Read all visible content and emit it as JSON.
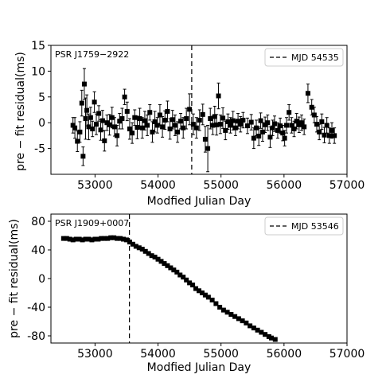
{
  "chart_data": [
    {
      "type": "scatter",
      "annotation": "PSR J1759−2922",
      "legend_label": "MJD 54535",
      "legend_position": "top-right",
      "vline_x": 54535,
      "xlabel": "Modfied Julian Day",
      "ylabel": "pre − fit residual(ms)",
      "xlim": [
        52300,
        57000
      ],
      "ylim": [
        -10,
        15
      ],
      "x_ticks": [
        53000,
        54000,
        55000,
        56000,
        57000
      ],
      "y_ticks": [
        15,
        10,
        5,
        0,
        -5
      ],
      "error_bars": true,
      "points": [
        [
          52650,
          -0.5,
          1.5
        ],
        [
          52680,
          -1.0,
          2.0
        ],
        [
          52720,
          -3.6,
          2.0
        ],
        [
          52760,
          -1.8,
          2.0
        ],
        [
          52790,
          3.8,
          2.5
        ],
        [
          52810,
          -6.5,
          1.8
        ],
        [
          52830,
          7.5,
          3.0
        ],
        [
          52850,
          0.8,
          4.0
        ],
        [
          52870,
          2.4,
          3.0
        ],
        [
          52900,
          -0.8,
          2.5
        ],
        [
          52930,
          1.0,
          2.0
        ],
        [
          52960,
          -1.2,
          1.5
        ],
        [
          52990,
          4.0,
          2.0
        ],
        [
          53020,
          -0.3,
          2.0
        ],
        [
          53060,
          1.8,
          1.5
        ],
        [
          53090,
          -1.4,
          2.0
        ],
        [
          53120,
          0.4,
          2.0
        ],
        [
          53150,
          -3.5,
          2.0
        ],
        [
          53190,
          0.0,
          1.5
        ],
        [
          53230,
          -0.4,
          2.0
        ],
        [
          53270,
          1.0,
          2.0
        ],
        [
          53310,
          -0.8,
          1.8
        ],
        [
          53350,
          -2.5,
          2.0
        ],
        [
          53390,
          0.3,
          1.5
        ],
        [
          53430,
          0.8,
          2.0
        ],
        [
          53470,
          5.0,
          1.5
        ],
        [
          53510,
          2.2,
          1.8
        ],
        [
          53550,
          -1.2,
          2.0
        ],
        [
          53590,
          -2.0,
          2.0
        ],
        [
          53630,
          1.0,
          1.5
        ],
        [
          53670,
          -0.9,
          2.2
        ],
        [
          53710,
          0.8,
          2.0
        ],
        [
          53750,
          -1.0,
          2.0
        ],
        [
          53790,
          0.4,
          1.8
        ],
        [
          53830,
          -0.5,
          2.0
        ],
        [
          53870,
          2.0,
          1.5
        ],
        [
          53910,
          -1.8,
          2.0
        ],
        [
          53950,
          0.2,
          2.0
        ],
        [
          53990,
          -0.5,
          1.5
        ],
        [
          54030,
          1.5,
          2.0
        ],
        [
          54070,
          -0.8,
          2.0
        ],
        [
          54110,
          0.5,
          1.8
        ],
        [
          54150,
          2.2,
          2.0
        ],
        [
          54190,
          -1.2,
          2.0
        ],
        [
          54230,
          0.6,
          1.8
        ],
        [
          54270,
          -0.5,
          2.0
        ],
        [
          54310,
          -1.8,
          2.0
        ],
        [
          54360,
          0.3,
          1.5
        ],
        [
          54400,
          -1.0,
          2.0
        ],
        [
          54450,
          0.8,
          2.0
        ],
        [
          54500,
          2.6,
          3.0
        ],
        [
          54560,
          -0.3,
          2.0
        ],
        [
          54610,
          -1.0,
          2.0
        ],
        [
          54660,
          0.5,
          2.0
        ],
        [
          54710,
          1.6,
          2.0
        ],
        [
          54750,
          -3.2,
          2.5
        ],
        [
          54790,
          -5.0,
          4.5
        ],
        [
          54830,
          0.8,
          2.0
        ],
        [
          54870,
          -0.5,
          1.8
        ],
        [
          54900,
          1.2,
          2.0
        ],
        [
          54930,
          -0.4,
          2.0
        ],
        [
          54960,
          5.2,
          2.5
        ],
        [
          54990,
          -0.3,
          1.8
        ],
        [
          55030,
          0.9,
          2.0
        ],
        [
          55070,
          -1.5,
          1.8
        ],
        [
          55110,
          0.2,
          1.5
        ],
        [
          55150,
          -0.5,
          1.5
        ],
        [
          55190,
          0.4,
          1.8
        ],
        [
          55230,
          -1.0,
          1.5
        ],
        [
          55270,
          0.3,
          1.5
        ],
        [
          55310,
          -0.3,
          1.5
        ],
        [
          55350,
          0.5,
          1.5
        ],
        [
          55420,
          -0.6,
          1.5
        ],
        [
          55480,
          0.1,
          1.5
        ],
        [
          55520,
          -3.0,
          2.0
        ],
        [
          55560,
          -1.0,
          1.5
        ],
        [
          55600,
          -2.6,
          1.8
        ],
        [
          55630,
          0.4,
          1.5
        ],
        [
          55660,
          -1.8,
          1.8
        ],
        [
          55700,
          -0.4,
          1.5
        ],
        [
          55740,
          0.0,
          1.5
        ],
        [
          55780,
          -2.8,
          2.0
        ],
        [
          55820,
          -1.0,
          1.5
        ],
        [
          55850,
          -0.2,
          1.5
        ],
        [
          55900,
          -1.5,
          1.5
        ],
        [
          55940,
          -0.6,
          1.5
        ],
        [
          55980,
          -2.0,
          1.5
        ],
        [
          56010,
          -3.0,
          1.5
        ],
        [
          56040,
          -0.5,
          1.5
        ],
        [
          56080,
          2.0,
          1.5
        ],
        [
          56120,
          -0.5,
          1.5
        ],
        [
          56160,
          -1.2,
          1.5
        ],
        [
          56200,
          0.3,
          1.5
        ],
        [
          56240,
          -0.4,
          1.5
        ],
        [
          56280,
          0.0,
          1.5
        ],
        [
          56320,
          -0.8,
          1.5
        ],
        [
          56380,
          5.7,
          1.8
        ],
        [
          56440,
          3.0,
          1.5
        ],
        [
          56480,
          1.5,
          1.5
        ],
        [
          56520,
          -0.3,
          1.5
        ],
        [
          56560,
          -1.8,
          1.5
        ],
        [
          56600,
          0.2,
          1.5
        ],
        [
          56640,
          -2.4,
          1.5
        ],
        [
          56680,
          -0.5,
          1.5
        ],
        [
          56720,
          -2.5,
          1.5
        ],
        [
          56760,
          -1.5,
          1.5
        ],
        [
          56800,
          -2.5,
          1.5
        ]
      ]
    },
    {
      "type": "scatter",
      "annotation": "PSR J1909+0007",
      "legend_label": "MJD 53546",
      "legend_position": "top-right",
      "vline_x": 53546,
      "xlabel": "Modfied Julian Day",
      "ylabel": "pre − fit residual(ms)",
      "xlim": [
        52300,
        57000
      ],
      "ylim": [
        -90,
        90
      ],
      "x_ticks": [
        53000,
        54000,
        55000,
        56000,
        57000
      ],
      "y_ticks": [
        80,
        40,
        0,
        -40,
        -80
      ],
      "error_bars": false,
      "points": [
        [
          52500,
          56
        ],
        [
          52550,
          56
        ],
        [
          52600,
          55
        ],
        [
          52650,
          54
        ],
        [
          52700,
          55
        ],
        [
          52750,
          55
        ],
        [
          52800,
          54
        ],
        [
          52850,
          55
        ],
        [
          52900,
          55
        ],
        [
          52950,
          54
        ],
        [
          53000,
          55
        ],
        [
          53050,
          55
        ],
        [
          53100,
          56
        ],
        [
          53150,
          56
        ],
        [
          53200,
          56
        ],
        [
          53250,
          57
        ],
        [
          53300,
          57
        ],
        [
          53350,
          56
        ],
        [
          53400,
          56
        ],
        [
          53450,
          55
        ],
        [
          53500,
          54
        ],
        [
          53550,
          51
        ],
        [
          53600,
          48
        ],
        [
          53650,
          45
        ],
        [
          53700,
          43
        ],
        [
          53750,
          41
        ],
        [
          53800,
          38
        ],
        [
          53850,
          35
        ],
        [
          53900,
          32
        ],
        [
          53950,
          30
        ],
        [
          54000,
          27
        ],
        [
          54050,
          24
        ],
        [
          54100,
          21
        ],
        [
          54150,
          18
        ],
        [
          54200,
          15
        ],
        [
          54250,
          12
        ],
        [
          54300,
          9
        ],
        [
          54350,
          5
        ],
        [
          54400,
          2
        ],
        [
          54450,
          -2
        ],
        [
          54500,
          -6
        ],
        [
          54550,
          -9
        ],
        [
          54600,
          -14
        ],
        [
          54650,
          -17
        ],
        [
          54700,
          -20
        ],
        [
          54750,
          -23
        ],
        [
          54800,
          -26
        ],
        [
          54860,
          -30
        ],
        [
          54920,
          -35
        ],
        [
          54980,
          -40
        ],
        [
          55040,
          -44
        ],
        [
          55100,
          -47
        ],
        [
          55160,
          -50
        ],
        [
          55220,
          -53
        ],
        [
          55280,
          -56
        ],
        [
          55340,
          -59
        ],
        [
          55400,
          -62
        ],
        [
          55460,
          -66
        ],
        [
          55520,
          -69
        ],
        [
          55580,
          -72
        ],
        [
          55640,
          -75
        ],
        [
          55700,
          -78
        ],
        [
          55760,
          -81
        ],
        [
          55800,
          -83
        ],
        [
          55860,
          -85
        ]
      ]
    }
  ]
}
